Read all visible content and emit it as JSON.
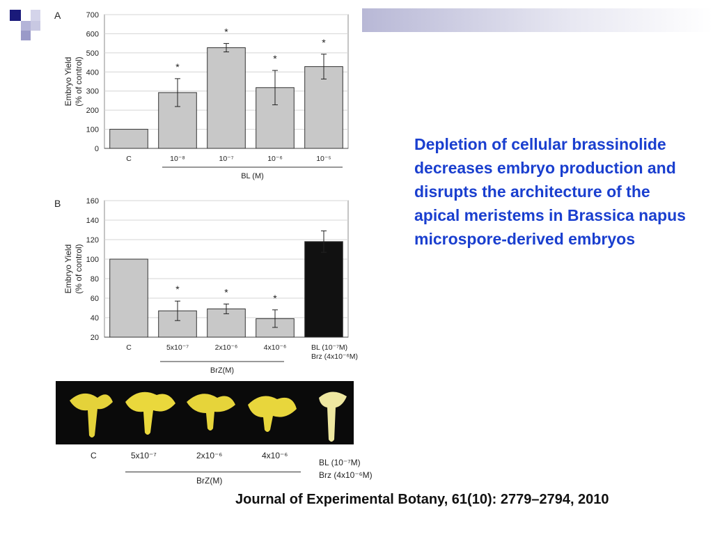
{
  "slide": {
    "caption": "Depletion of cellular brassinolide decreases embryo production and disrupts the architecture of the apical meristems in Brassica napus microspore-derived embryos",
    "citation": "Journal of Experimental Botany, 61(10): 2779–2794, 2010",
    "colors": {
      "caption": "#1a3fcf",
      "deco_dark": "#1a1a7a",
      "deco_light": "#9a9ac8"
    }
  },
  "chart_data": [
    {
      "panel": "A",
      "type": "bar",
      "ylabel": "Embryo Yield (% of control)",
      "ylabel_lines": [
        "Embryo Yield",
        "(% of control)"
      ],
      "ylim": [
        0,
        700
      ],
      "yticks": [
        "0",
        "100",
        "200",
        "300",
        "400",
        "500",
        "600",
        "700"
      ],
      "categories": [
        "C",
        "10⁻⁸",
        "10⁻⁷",
        "10⁻⁶",
        "10⁻⁵"
      ],
      "values": [
        100,
        292,
        527,
        318,
        428
      ],
      "errors": [
        0,
        73,
        22,
        90,
        65
      ],
      "significance": [
        "",
        "*",
        "*",
        "*",
        "*"
      ],
      "bar_colors": [
        "#c8c8c8",
        "#c8c8c8",
        "#c8c8c8",
        "#c8c8c8",
        "#c8c8c8"
      ],
      "group_label": "BL (M)",
      "grid": true
    },
    {
      "panel": "B",
      "type": "bar",
      "ylabel": "Embryo Yield (% of control)",
      "ylabel_lines": [
        "Embryo Yield",
        "(% of control)"
      ],
      "ylim": [
        20,
        160
      ],
      "yticks": [
        "20",
        "40",
        "60",
        "80",
        "100",
        "120",
        "140",
        "160"
      ],
      "categories": [
        "C",
        "5x10⁻⁷",
        "2x10⁻⁶",
        "4x10⁻⁶",
        "BL (10⁻⁷M)|Brz (4x10⁻⁶M)"
      ],
      "values": [
        100,
        47,
        49,
        39,
        118
      ],
      "errors": [
        0,
        10,
        5,
        9,
        11
      ],
      "significance": [
        "",
        "*",
        "*",
        "*",
        ""
      ],
      "bar_colors": [
        "#c8c8c8",
        "#c8c8c8",
        "#c8c8c8",
        "#c8c8c8",
        "#111111"
      ],
      "group_label": "BrZ(M)",
      "grid": true
    }
  ],
  "photo": {
    "labels": [
      "C",
      "5x10⁻⁷",
      "2x10⁻⁶",
      "4x10⁻⁶"
    ],
    "last_label_lines": [
      "BL (10⁻⁷M)",
      "Brz (4x10⁻⁶M)"
    ],
    "group_label": "BrZ(M)"
  }
}
